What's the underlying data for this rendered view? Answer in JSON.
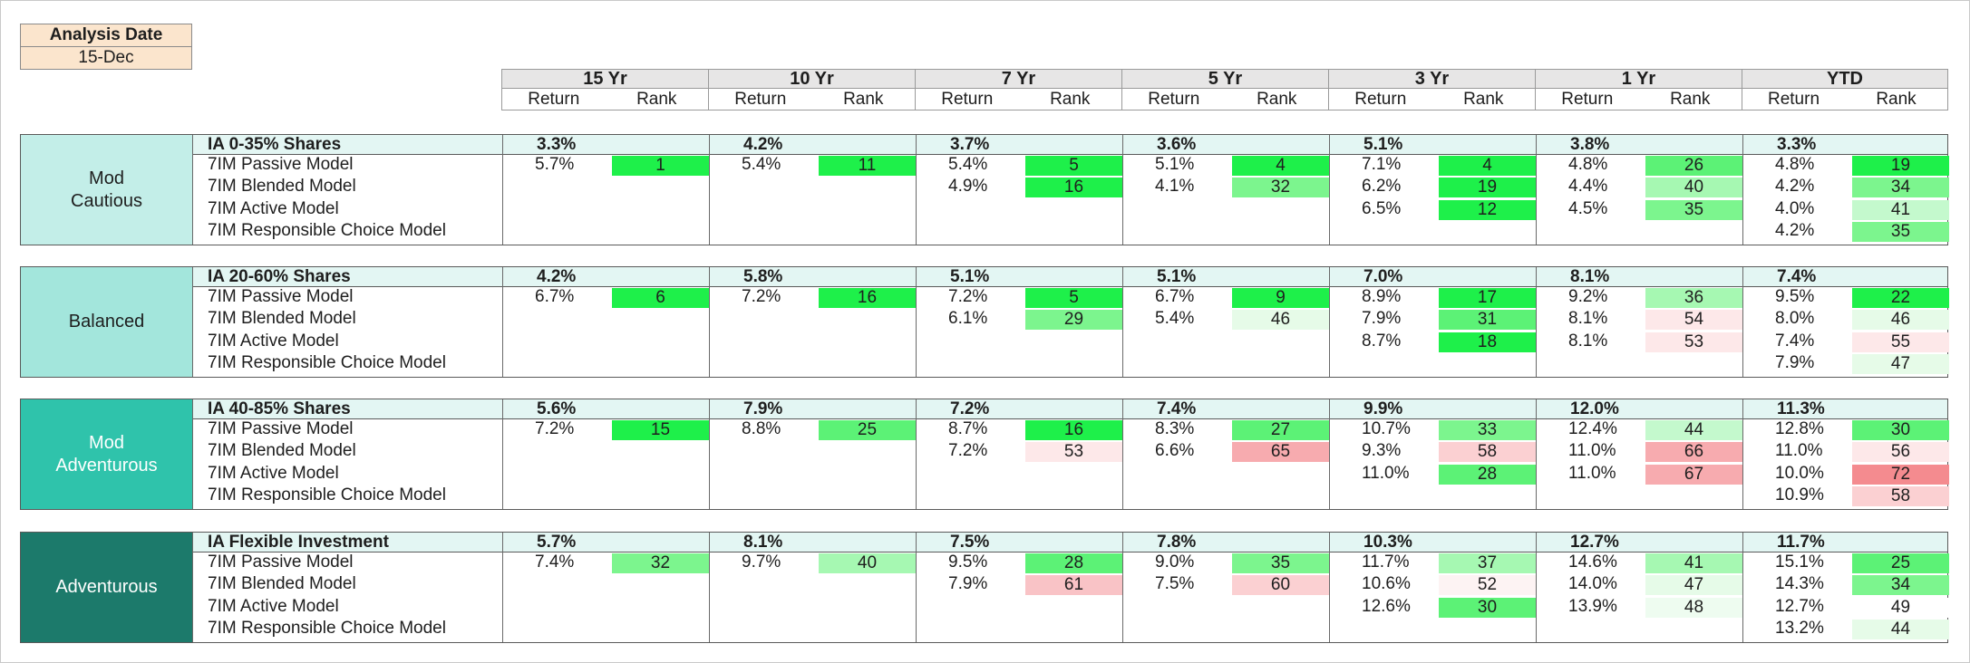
{
  "analysis": {
    "title": "Analysis Date",
    "value": "15-Dec"
  },
  "periods": [
    "15 Yr",
    "10 Yr",
    "7 Yr",
    "5 Yr",
    "3 Yr",
    "1 Yr",
    "YTD"
  ],
  "subheaders": {
    "return": "Return",
    "rank": "Rank"
  },
  "colors": {
    "header_fill": "#e7e6e6",
    "analysis_fill": "#fbe5cd",
    "benchmark_row_fill": "#e3f6f3",
    "block_colors": [
      "#c3eee8",
      "#a3e6dc",
      "#2fc3ab",
      "#1c7a6b"
    ],
    "rank_good_strong": "#1ef04a",
    "rank_good_mid": "#7cf58e",
    "rank_good_light": "#c4f9cd",
    "rank_good_faint": "#e6fbe8",
    "rank_bad_faint": "#fde8e9",
    "rank_bad_light": "#f9c3c6",
    "rank_bad_strong": "#f48b8f"
  },
  "blocks": [
    {
      "label": "Mod\nCautious",
      "benchmark": {
        "name": "IA 0-35% Shares",
        "values": [
          "3.3%",
          "4.2%",
          "3.7%",
          "3.6%",
          "5.1%",
          "3.8%",
          "3.3%"
        ]
      },
      "rows": [
        {
          "name": "7IM Passive Model",
          "cells": [
            {
              "ret": "5.7%",
              "rank": "1",
              "shade": "#1ef04a"
            },
            {
              "ret": "5.4%",
              "rank": "11",
              "shade": "#1ef04a"
            },
            {
              "ret": "5.4%",
              "rank": "5",
              "shade": "#1ef04a"
            },
            {
              "ret": "5.1%",
              "rank": "4",
              "shade": "#1ef04a"
            },
            {
              "ret": "7.1%",
              "rank": "4",
              "shade": "#1ef04a"
            },
            {
              "ret": "4.8%",
              "rank": "26",
              "shade": "#5cf276"
            },
            {
              "ret": "4.8%",
              "rank": "19",
              "shade": "#1ef04a"
            }
          ]
        },
        {
          "name": "7IM Blended Model",
          "cells": [
            {
              "ret": "",
              "rank": "",
              "shade": ""
            },
            {
              "ret": "",
              "rank": "",
              "shade": ""
            },
            {
              "ret": "4.9%",
              "rank": "16",
              "shade": "#1ef04a"
            },
            {
              "ret": "4.1%",
              "rank": "32",
              "shade": "#7cf58e"
            },
            {
              "ret": "6.2%",
              "rank": "19",
              "shade": "#1ef04a"
            },
            {
              "ret": "4.4%",
              "rank": "40",
              "shade": "#a6f8b2"
            },
            {
              "ret": "4.2%",
              "rank": "34",
              "shade": "#7cf58e"
            }
          ]
        },
        {
          "name": "7IM Active Model",
          "cells": [
            {
              "ret": "",
              "rank": "",
              "shade": ""
            },
            {
              "ret": "",
              "rank": "",
              "shade": ""
            },
            {
              "ret": "",
              "rank": "",
              "shade": ""
            },
            {
              "ret": "",
              "rank": "",
              "shade": ""
            },
            {
              "ret": "6.5%",
              "rank": "12",
              "shade": "#1ef04a"
            },
            {
              "ret": "4.5%",
              "rank": "35",
              "shade": "#7cf58e"
            },
            {
              "ret": "4.0%",
              "rank": "41",
              "shade": "#c4f9cd"
            }
          ]
        },
        {
          "name": "7IM Responsible Choice Model",
          "cells": [
            {
              "ret": "",
              "rank": "",
              "shade": ""
            },
            {
              "ret": "",
              "rank": "",
              "shade": ""
            },
            {
              "ret": "",
              "rank": "",
              "shade": ""
            },
            {
              "ret": "",
              "rank": "",
              "shade": ""
            },
            {
              "ret": "",
              "rank": "",
              "shade": ""
            },
            {
              "ret": "",
              "rank": "",
              "shade": ""
            },
            {
              "ret": "4.2%",
              "rank": "35",
              "shade": "#7cf58e"
            }
          ]
        }
      ]
    },
    {
      "label": "Balanced",
      "benchmark": {
        "name": "IA 20-60% Shares",
        "values": [
          "4.2%",
          "5.8%",
          "5.1%",
          "5.1%",
          "7.0%",
          "8.1%",
          "7.4%"
        ]
      },
      "rows": [
        {
          "name": "7IM Passive Model",
          "cells": [
            {
              "ret": "6.7%",
              "rank": "6",
              "shade": "#1ef04a"
            },
            {
              "ret": "7.2%",
              "rank": "16",
              "shade": "#1ef04a"
            },
            {
              "ret": "7.2%",
              "rank": "5",
              "shade": "#1ef04a"
            },
            {
              "ret": "6.7%",
              "rank": "9",
              "shade": "#1ef04a"
            },
            {
              "ret": "8.9%",
              "rank": "17",
              "shade": "#1ef04a"
            },
            {
              "ret": "9.2%",
              "rank": "36",
              "shade": "#a6f8b2"
            },
            {
              "ret": "9.5%",
              "rank": "22",
              "shade": "#1ef04a"
            }
          ]
        },
        {
          "name": "7IM Blended Model",
          "cells": [
            {
              "ret": "",
              "rank": "",
              "shade": ""
            },
            {
              "ret": "",
              "rank": "",
              "shade": ""
            },
            {
              "ret": "6.1%",
              "rank": "29",
              "shade": "#7cf58e"
            },
            {
              "ret": "5.4%",
              "rank": "46",
              "shade": "#e6fbe8"
            },
            {
              "ret": "7.9%",
              "rank": "31",
              "shade": "#5cf276"
            },
            {
              "ret": "8.1%",
              "rank": "54",
              "shade": "#fde8e9"
            },
            {
              "ret": "8.0%",
              "rank": "46",
              "shade": "#e6fbe8"
            }
          ]
        },
        {
          "name": "7IM Active Model",
          "cells": [
            {
              "ret": "",
              "rank": "",
              "shade": ""
            },
            {
              "ret": "",
              "rank": "",
              "shade": ""
            },
            {
              "ret": "",
              "rank": "",
              "shade": ""
            },
            {
              "ret": "",
              "rank": "",
              "shade": ""
            },
            {
              "ret": "8.7%",
              "rank": "18",
              "shade": "#1ef04a"
            },
            {
              "ret": "8.1%",
              "rank": "53",
              "shade": "#fde8e9"
            },
            {
              "ret": "7.4%",
              "rank": "55",
              "shade": "#fde8e9"
            }
          ]
        },
        {
          "name": "7IM Responsible Choice Model",
          "cells": [
            {
              "ret": "",
              "rank": "",
              "shade": ""
            },
            {
              "ret": "",
              "rank": "",
              "shade": ""
            },
            {
              "ret": "",
              "rank": "",
              "shade": ""
            },
            {
              "ret": "",
              "rank": "",
              "shade": ""
            },
            {
              "ret": "",
              "rank": "",
              "shade": ""
            },
            {
              "ret": "",
              "rank": "",
              "shade": ""
            },
            {
              "ret": "7.9%",
              "rank": "47",
              "shade": "#e6fbe8"
            }
          ]
        }
      ]
    },
    {
      "label": "Mod\nAdventurous",
      "benchmark": {
        "name": "IA 40-85% Shares",
        "values": [
          "5.6%",
          "7.9%",
          "7.2%",
          "7.4%",
          "9.9%",
          "12.0%",
          "11.3%"
        ]
      },
      "rows": [
        {
          "name": "7IM Passive Model",
          "cells": [
            {
              "ret": "7.2%",
              "rank": "15",
              "shade": "#1ef04a"
            },
            {
              "ret": "8.8%",
              "rank": "25",
              "shade": "#5cf276"
            },
            {
              "ret": "8.7%",
              "rank": "16",
              "shade": "#1ef04a"
            },
            {
              "ret": "8.3%",
              "rank": "27",
              "shade": "#5cf276"
            },
            {
              "ret": "10.7%",
              "rank": "33",
              "shade": "#7cf58e"
            },
            {
              "ret": "12.4%",
              "rank": "44",
              "shade": "#c4f9cd"
            },
            {
              "ret": "12.8%",
              "rank": "30",
              "shade": "#5cf276"
            }
          ]
        },
        {
          "name": "7IM Blended Model",
          "cells": [
            {
              "ret": "",
              "rank": "",
              "shade": ""
            },
            {
              "ret": "",
              "rank": "",
              "shade": ""
            },
            {
              "ret": "7.2%",
              "rank": "53",
              "shade": "#fde8e9"
            },
            {
              "ret": "6.6%",
              "rank": "65",
              "shade": "#f7abaf"
            },
            {
              "ret": "9.3%",
              "rank": "58",
              "shade": "#fbd0d2"
            },
            {
              "ret": "11.0%",
              "rank": "66",
              "shade": "#f7abaf"
            },
            {
              "ret": "11.0%",
              "rank": "56",
              "shade": "#fde8e9"
            }
          ]
        },
        {
          "name": "7IM Active Model",
          "cells": [
            {
              "ret": "",
              "rank": "",
              "shade": ""
            },
            {
              "ret": "",
              "rank": "",
              "shade": ""
            },
            {
              "ret": "",
              "rank": "",
              "shade": ""
            },
            {
              "ret": "",
              "rank": "",
              "shade": ""
            },
            {
              "ret": "11.0%",
              "rank": "28",
              "shade": "#5cf276"
            },
            {
              "ret": "11.0%",
              "rank": "67",
              "shade": "#f7abaf"
            },
            {
              "ret": "10.0%",
              "rank": "72",
              "shade": "#f48b8f"
            }
          ]
        },
        {
          "name": "7IM Responsible Choice Model",
          "cells": [
            {
              "ret": "",
              "rank": "",
              "shade": ""
            },
            {
              "ret": "",
              "rank": "",
              "shade": ""
            },
            {
              "ret": "",
              "rank": "",
              "shade": ""
            },
            {
              "ret": "",
              "rank": "",
              "shade": ""
            },
            {
              "ret": "",
              "rank": "",
              "shade": ""
            },
            {
              "ret": "",
              "rank": "",
              "shade": ""
            },
            {
              "ret": "10.9%",
              "rank": "58",
              "shade": "#fbd0d2"
            }
          ]
        }
      ]
    },
    {
      "label": "Adventurous",
      "benchmark": {
        "name": "IA Flexible Investment",
        "values": [
          "5.7%",
          "8.1%",
          "7.5%",
          "7.8%",
          "10.3%",
          "12.7%",
          "11.7%"
        ]
      },
      "rows": [
        {
          "name": "7IM Passive Model",
          "cells": [
            {
              "ret": "7.4%",
              "rank": "32",
              "shade": "#7cf58e"
            },
            {
              "ret": "9.7%",
              "rank": "40",
              "shade": "#a6f8b2"
            },
            {
              "ret": "9.5%",
              "rank": "28",
              "shade": "#5cf276"
            },
            {
              "ret": "9.0%",
              "rank": "35",
              "shade": "#7cf58e"
            },
            {
              "ret": "11.7%",
              "rank": "37",
              "shade": "#a6f8b2"
            },
            {
              "ret": "14.6%",
              "rank": "41",
              "shade": "#a6f8b2"
            },
            {
              "ret": "15.1%",
              "rank": "25",
              "shade": "#5cf276"
            }
          ]
        },
        {
          "name": "7IM Blended Model",
          "cells": [
            {
              "ret": "",
              "rank": "",
              "shade": ""
            },
            {
              "ret": "",
              "rank": "",
              "shade": ""
            },
            {
              "ret": "7.9%",
              "rank": "61",
              "shade": "#f9c3c6"
            },
            {
              "ret": "7.5%",
              "rank": "60",
              "shade": "#fbd0d2"
            },
            {
              "ret": "10.6%",
              "rank": "52",
              "shade": "#fdf3f3"
            },
            {
              "ret": "14.0%",
              "rank": "47",
              "shade": "#e6fbe8"
            },
            {
              "ret": "14.3%",
              "rank": "34",
              "shade": "#7cf58e"
            }
          ]
        },
        {
          "name": "7IM Active Model",
          "cells": [
            {
              "ret": "",
              "rank": "",
              "shade": ""
            },
            {
              "ret": "",
              "rank": "",
              "shade": ""
            },
            {
              "ret": "",
              "rank": "",
              "shade": ""
            },
            {
              "ret": "",
              "rank": "",
              "shade": ""
            },
            {
              "ret": "12.6%",
              "rank": "30",
              "shade": "#5cf276"
            },
            {
              "ret": "13.9%",
              "rank": "48",
              "shade": "#eefcf0"
            },
            {
              "ret": "12.7%",
              "rank": "49",
              "shade": "#ffffff"
            }
          ]
        },
        {
          "name": "7IM Responsible Choice Model",
          "cells": [
            {
              "ret": "",
              "rank": "",
              "shade": ""
            },
            {
              "ret": "",
              "rank": "",
              "shade": ""
            },
            {
              "ret": "",
              "rank": "",
              "shade": ""
            },
            {
              "ret": "",
              "rank": "",
              "shade": ""
            },
            {
              "ret": "",
              "rank": "",
              "shade": ""
            },
            {
              "ret": "",
              "rank": "",
              "shade": ""
            },
            {
              "ret": "13.2%",
              "rank": "44",
              "shade": "#e6fbe8"
            }
          ]
        }
      ]
    }
  ]
}
